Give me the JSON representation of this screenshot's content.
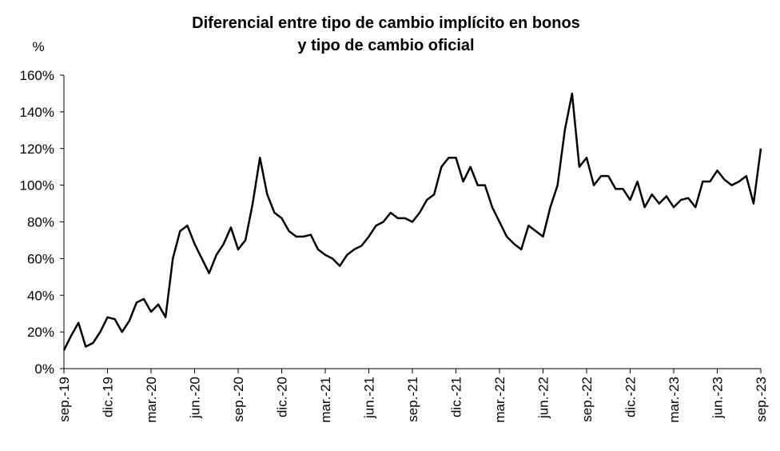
{
  "chart_data": {
    "type": "line",
    "title": [
      "Diferencial entre tipo de cambio implícito en bonos",
      "y tipo de cambio oficial"
    ],
    "y_label": "%",
    "categories": [
      "sep.-19",
      null,
      null,
      null,
      null,
      null,
      "dic.-19",
      null,
      null,
      null,
      null,
      null,
      "mar.-20",
      null,
      null,
      null,
      null,
      null,
      "jun.-20",
      null,
      null,
      null,
      null,
      null,
      "sep.-20",
      null,
      null,
      null,
      null,
      null,
      "dic.-20",
      null,
      null,
      null,
      null,
      null,
      "mar.-21",
      null,
      null,
      null,
      null,
      null,
      "jun.-21",
      null,
      null,
      null,
      null,
      null,
      "sep.-21",
      null,
      null,
      null,
      null,
      null,
      "dic.-21",
      null,
      null,
      null,
      null,
      null,
      "mar.-22",
      null,
      null,
      null,
      null,
      null,
      "jun.-22",
      null,
      null,
      null,
      null,
      null,
      "sep.-22",
      null,
      null,
      null,
      null,
      null,
      "dic.-22",
      null,
      null,
      null,
      null,
      null,
      "mar.-23",
      null,
      null,
      null,
      null,
      null,
      "jun.-23",
      null,
      null,
      null,
      null,
      null,
      "sep.-23"
    ],
    "series": [
      {
        "name": "Diferencial",
        "color": "#000000",
        "values": [
          10,
          18,
          25,
          12,
          14,
          20,
          28,
          27,
          20,
          26,
          36,
          38,
          31,
          35,
          28,
          60,
          75,
          78,
          68,
          60,
          52,
          62,
          68,
          77,
          65,
          70,
          90,
          115,
          95,
          85,
          82,
          75,
          72,
          72,
          73,
          65,
          62,
          60,
          56,
          62,
          65,
          67,
          72,
          78,
          80,
          85,
          82,
          82,
          80,
          85,
          92,
          95,
          110,
          115,
          115,
          102,
          110,
          100,
          100,
          88,
          80,
          72,
          68,
          65,
          78,
          75,
          72,
          88,
          100,
          130,
          150,
          110,
          115,
          100,
          105,
          105,
          98,
          98,
          92,
          102,
          88,
          95,
          90,
          94,
          88,
          92,
          93,
          88,
          102,
          102,
          108,
          103,
          100,
          102,
          105,
          90,
          120
        ]
      }
    ],
    "ylim": [
      0,
      160
    ],
    "yticks": [
      {
        "value": 0,
        "label": "0%"
      },
      {
        "value": 20,
        "label": "20%"
      },
      {
        "value": 40,
        "label": "40%"
      },
      {
        "value": 60,
        "label": "60%"
      },
      {
        "value": 80,
        "label": "80%"
      },
      {
        "value": 100,
        "label": "100%"
      },
      {
        "value": 120,
        "label": "120%"
      },
      {
        "value": 140,
        "label": "140%"
      },
      {
        "value": 160,
        "label": "160%"
      }
    ],
    "grid": false
  }
}
